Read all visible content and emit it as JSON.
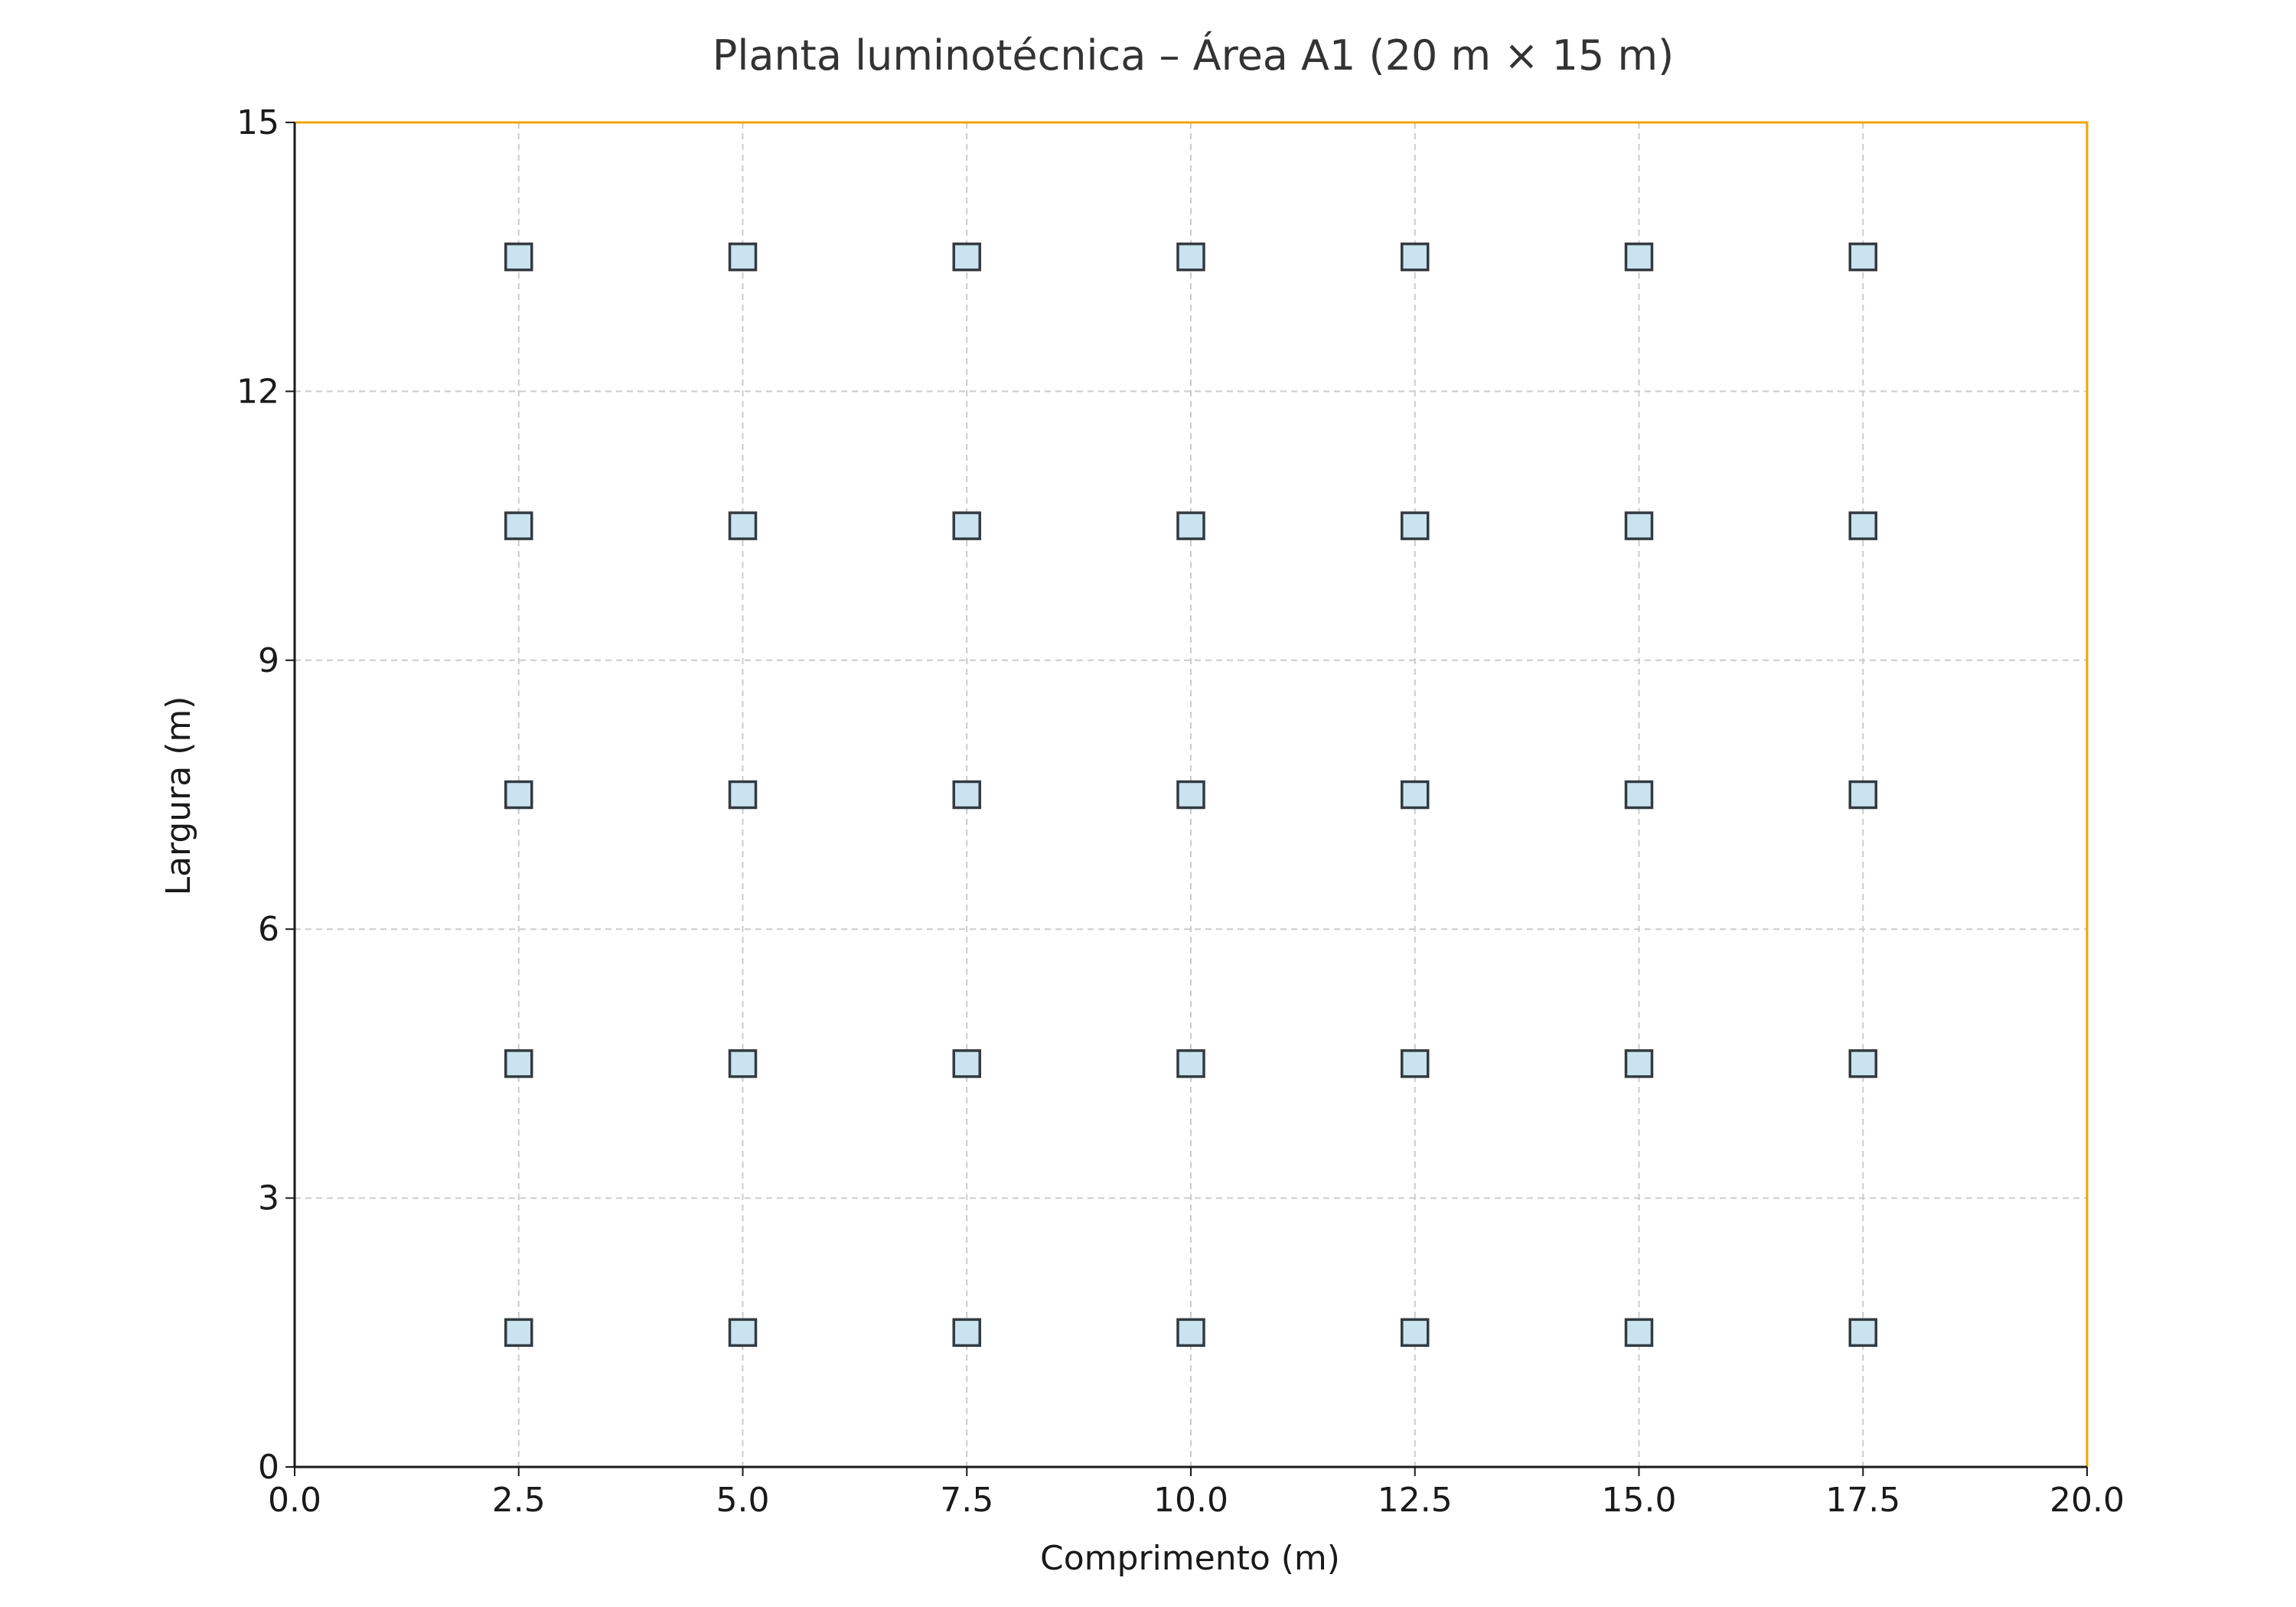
{
  "chart_data": {
    "type": "scatter",
    "title": "Planta luminotécnica – Área A1 (20 m × 15 m)",
    "xlabel": "Comprimento (m)",
    "ylabel": "Largura (m)",
    "xlim": [
      0,
      20
    ],
    "ylim": [
      0,
      15
    ],
    "x_ticks": [
      "0.0",
      "2.5",
      "5.0",
      "7.5",
      "10.0",
      "12.5",
      "15.0",
      "17.5",
      "20.0"
    ],
    "x_tick_values": [
      0,
      2.5,
      5,
      7.5,
      10,
      12.5,
      15,
      17.5,
      20
    ],
    "y_ticks": [
      "0",
      "3",
      "6",
      "9",
      "12",
      "15"
    ],
    "y_tick_values": [
      0,
      3,
      6,
      9,
      12,
      15
    ],
    "grid": true,
    "marker": "square",
    "colors": {
      "marker_fill": "#c9e4ee",
      "marker_edge": "#333a40",
      "boundary": "#f0a500",
      "axis": "#1a1a1a"
    },
    "series": [
      {
        "x": [
          2.5,
          5,
          7.5,
          10,
          12.5,
          15,
          17.5,
          2.5,
          5,
          7.5,
          10,
          12.5,
          15,
          17.5,
          2.5,
          5,
          7.5,
          10,
          12.5,
          15,
          17.5,
          2.5,
          5,
          7.5,
          10,
          12.5,
          15,
          17.5,
          2.5,
          5,
          7.5,
          10,
          12.5,
          15,
          17.5
        ],
        "y": [
          1.5,
          1.5,
          1.5,
          1.5,
          1.5,
          1.5,
          1.5,
          4.5,
          4.5,
          4.5,
          4.5,
          4.5,
          4.5,
          4.5,
          7.5,
          7.5,
          7.5,
          7.5,
          7.5,
          7.5,
          7.5,
          10.5,
          10.5,
          10.5,
          10.5,
          10.5,
          10.5,
          10.5,
          13.5,
          13.5,
          13.5,
          13.5,
          13.5,
          13.5,
          13.5
        ]
      }
    ],
    "boundary_rectangle": {
      "x": [
        0,
        20
      ],
      "y": [
        0,
        15
      ]
    }
  }
}
